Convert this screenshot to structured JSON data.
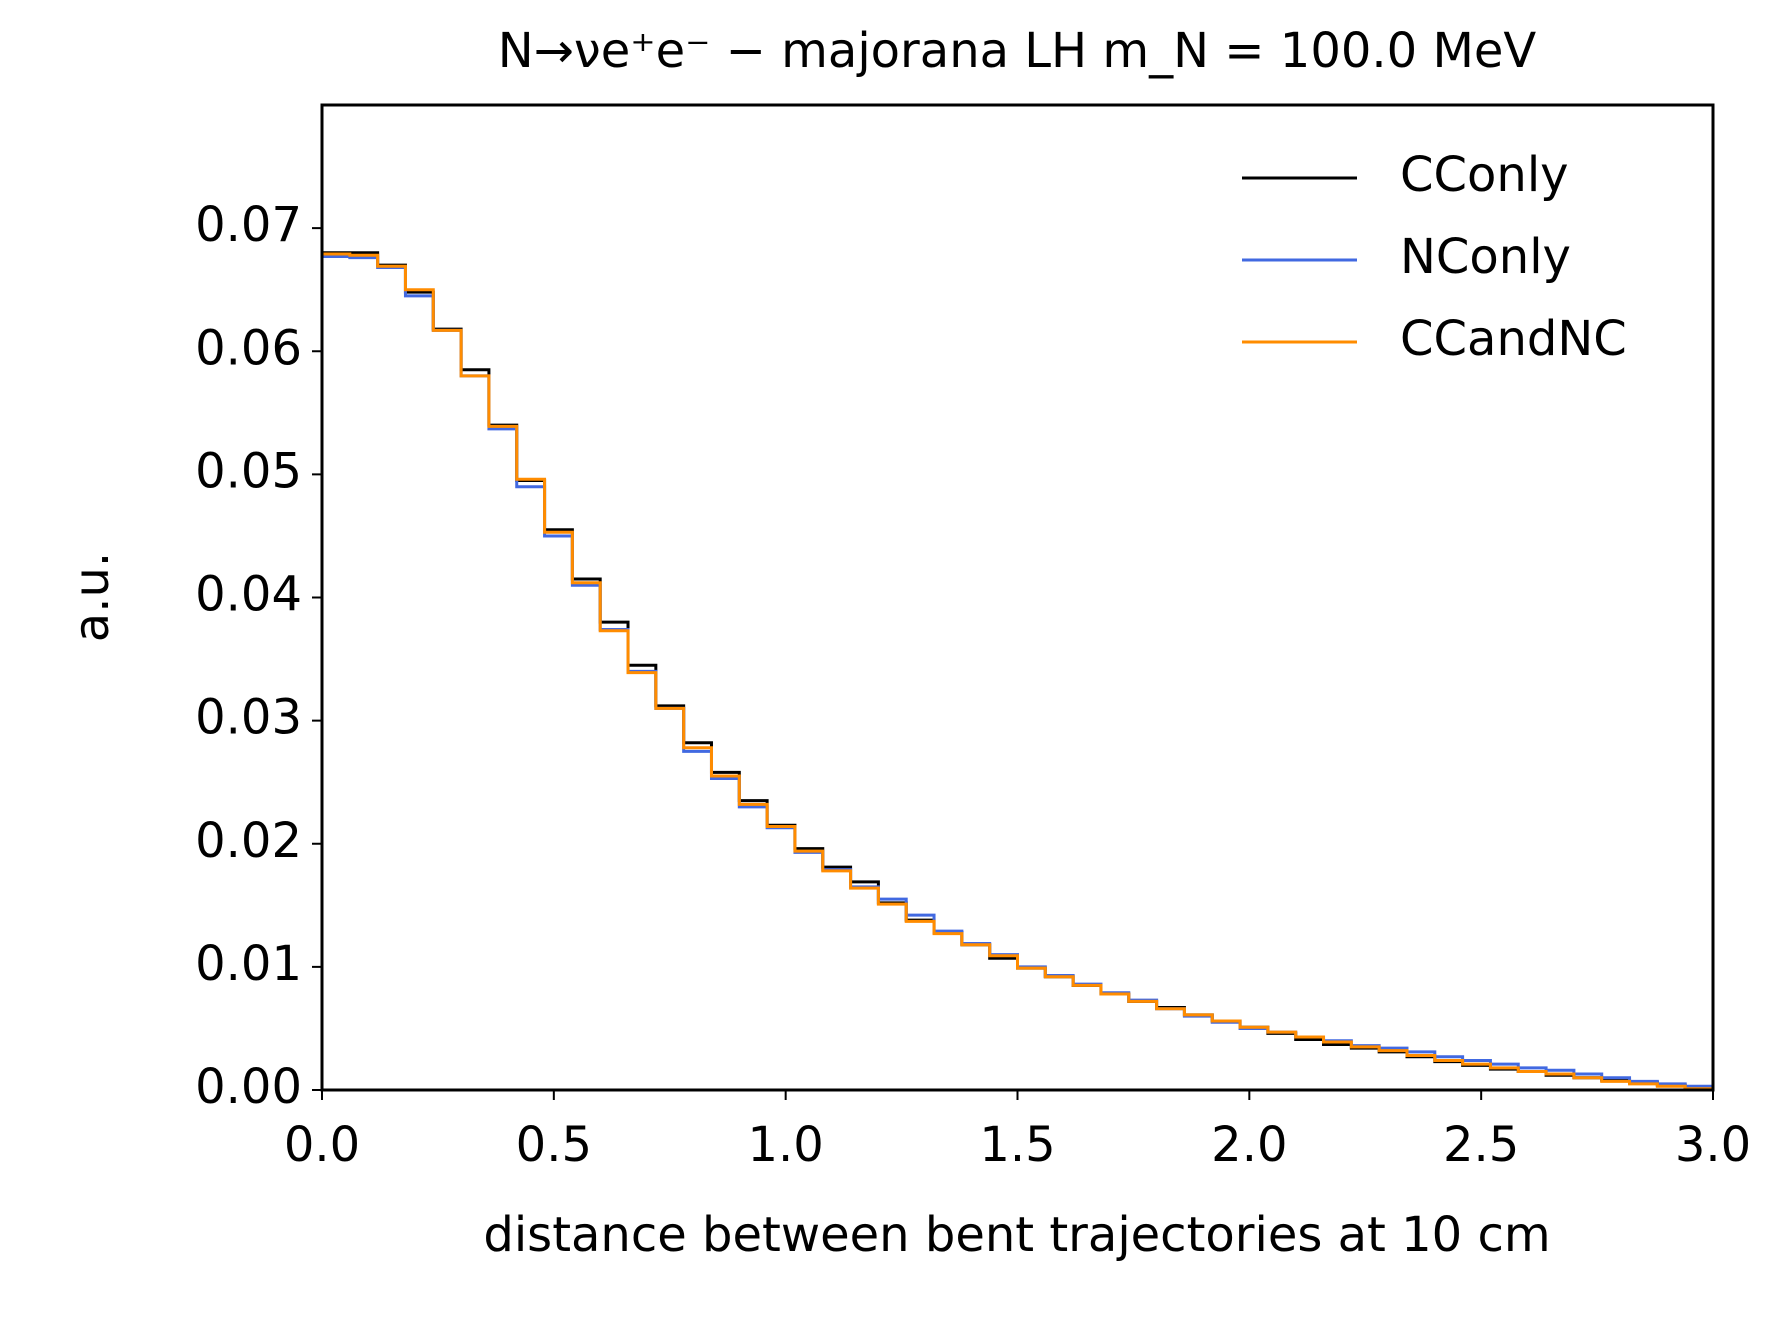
{
  "chart_data": {
    "type": "histogram",
    "title": "N→νe⁺e⁻ − majorana LH m_N = 100.0 MeV",
    "x_label": "distance between bent trajectories at 10 cm",
    "y_label": "a.u.",
    "bins": [
      0,
      0.06,
      0.12,
      0.18,
      0.24,
      0.3,
      0.36,
      0.42,
      0.48,
      0.54,
      0.6,
      0.66,
      0.72,
      0.78,
      0.84,
      0.9,
      0.96,
      1.02,
      1.08,
      1.14,
      1.2,
      1.26,
      1.32,
      1.38,
      1.44,
      1.5,
      1.56,
      1.62,
      1.68,
      1.74,
      1.8,
      1.86,
      1.92,
      1.98,
      2.04,
      2.1,
      2.16,
      2.22,
      2.28,
      2.34,
      2.4,
      2.46,
      2.52,
      2.58,
      2.64,
      2.7,
      2.76,
      2.82,
      2.88,
      2.94,
      3.0
    ],
    "series": [
      {
        "name": "CConly",
        "color": "#000000",
        "values": [
          0.068,
          0.068,
          0.067,
          0.0648,
          0.0618,
          0.0585,
          0.054,
          0.0495,
          0.0455,
          0.0415,
          0.038,
          0.0345,
          0.0312,
          0.0282,
          0.0258,
          0.0235,
          0.0215,
          0.0196,
          0.0181,
          0.0169,
          0.0152,
          0.0138,
          0.0128,
          0.0118,
          0.0107,
          0.0099,
          0.0092,
          0.0085,
          0.0078,
          0.0072,
          0.0067,
          0.0061,
          0.0056,
          0.0051,
          0.0046,
          0.0041,
          0.0037,
          0.0034,
          0.0031,
          0.0027,
          0.0023,
          0.002,
          0.0017,
          0.0015,
          0.0012,
          0.001,
          0.0008,
          0.0006,
          0.0004,
          0.0002
        ]
      },
      {
        "name": "NConly",
        "color": "#4169e1",
        "values": [
          0.0677,
          0.0676,
          0.0668,
          0.0645,
          0.0617,
          0.058,
          0.0537,
          0.049,
          0.045,
          0.041,
          0.0374,
          0.034,
          0.031,
          0.0275,
          0.0253,
          0.023,
          0.0213,
          0.0193,
          0.0179,
          0.0165,
          0.0155,
          0.0142,
          0.0129,
          0.0119,
          0.011,
          0.01,
          0.0093,
          0.0086,
          0.0079,
          0.0073,
          0.0066,
          0.006,
          0.0055,
          0.005,
          0.0047,
          0.0043,
          0.004,
          0.0036,
          0.0034,
          0.0031,
          0.0027,
          0.0024,
          0.0021,
          0.0018,
          0.0016,
          0.0013,
          0.001,
          0.0007,
          0.0005,
          0.0003
        ]
      },
      {
        "name": "CCandNC",
        "color": "#ff8c00",
        "values": [
          0.0679,
          0.0678,
          0.0669,
          0.065,
          0.0617,
          0.058,
          0.0539,
          0.0496,
          0.0453,
          0.0412,
          0.0373,
          0.0339,
          0.031,
          0.0278,
          0.0255,
          0.0232,
          0.0214,
          0.0194,
          0.0178,
          0.0164,
          0.0151,
          0.0137,
          0.0127,
          0.0118,
          0.0109,
          0.0099,
          0.0092,
          0.0085,
          0.0078,
          0.0072,
          0.0066,
          0.0061,
          0.0056,
          0.0051,
          0.0047,
          0.0043,
          0.0039,
          0.0035,
          0.0032,
          0.0028,
          0.0024,
          0.0021,
          0.0018,
          0.0015,
          0.0013,
          0.001,
          0.0007,
          0.0005,
          0.0003,
          0.0001
        ]
      }
    ],
    "xlim": [
      0,
      3
    ],
    "ylim": [
      0,
      0.08
    ],
    "xticks": [
      {
        "value": 0,
        "label": "0.0"
      },
      0.5,
      {
        "value": 1,
        "label": "1.0"
      },
      1.5,
      {
        "value": 2,
        "label": "2.0"
      },
      2.5,
      {
        "value": 3,
        "label": "3.0"
      }
    ],
    "yticks": [
      {
        "value": 0,
        "label": "0.00"
      },
      0.01,
      0.02,
      0.03,
      0.04,
      0.05,
      0.06,
      0.07
    ],
    "legend": "upper right"
  }
}
